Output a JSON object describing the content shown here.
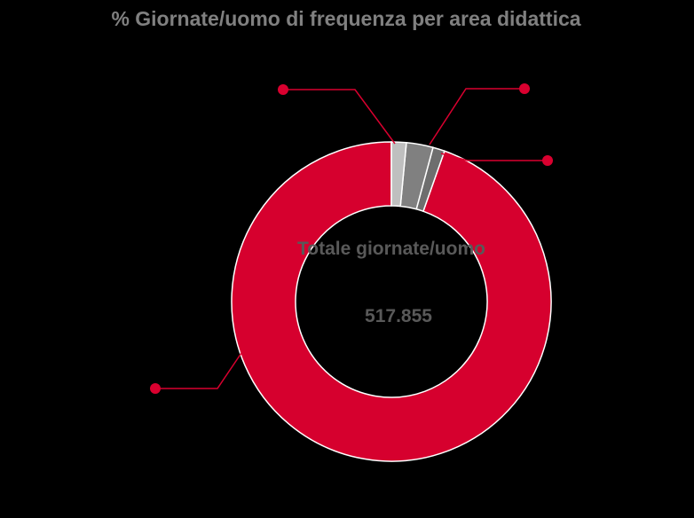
{
  "chart_data": {
    "type": "pie",
    "title": "% Giornate/uomo di frequenza per area didattica",
    "categories": [
      null,
      null,
      null,
      null
    ],
    "values": [
      1.5,
      2.7,
      1.2,
      94.6
    ],
    "colors": [
      "#bfbfbf",
      "#808080",
      "#6e6e6e",
      "#d6002e"
    ],
    "center_text": "Totale giornate/uomo",
    "center_value": "517.855"
  }
}
